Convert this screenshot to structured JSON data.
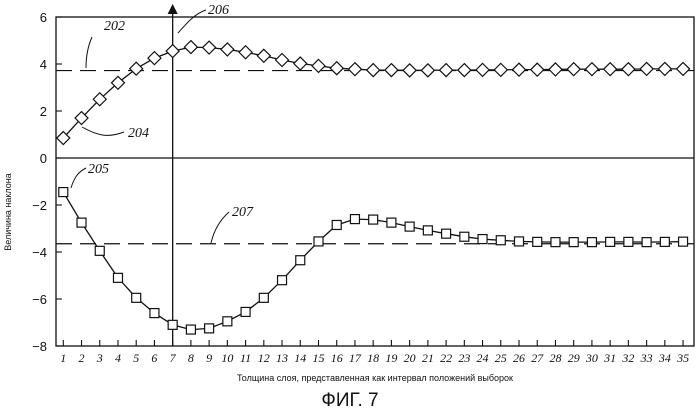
{
  "chart_data": {
    "type": "line",
    "title": "",
    "xlabel": "Толщина слоя, представленная как интервал положений выборок",
    "ylabel": "Величина наклона",
    "caption": "ФИГ. 7",
    "x": [
      1,
      2,
      3,
      4,
      5,
      6,
      7,
      8,
      9,
      10,
      11,
      12,
      13,
      14,
      15,
      16,
      17,
      18,
      19,
      20,
      21,
      22,
      23,
      24,
      25,
      26,
      27,
      28,
      29,
      30,
      31,
      32,
      33,
      34,
      35
    ],
    "xlim": [
      0.6,
      35.6
    ],
    "ylim": [
      -8,
      6
    ],
    "yticks": [
      -8,
      -6,
      -4,
      -2,
      0,
      2,
      4,
      6
    ],
    "series": [
      {
        "name": "",
        "marker": "diamond",
        "values": [
          0.85,
          1.7,
          2.5,
          3.2,
          3.8,
          4.25,
          4.55,
          4.72,
          4.7,
          4.62,
          4.5,
          4.35,
          4.17,
          4.02,
          3.92,
          3.82,
          3.78,
          3.74,
          3.74,
          3.73,
          3.73,
          3.74,
          3.74,
          3.75,
          3.75,
          3.76,
          3.76,
          3.77,
          3.78,
          3.78,
          3.78,
          3.78,
          3.79,
          3.79,
          3.79
        ]
      },
      {
        "name": "",
        "marker": "square",
        "values": [
          -1.45,
          -2.75,
          -3.95,
          -5.1,
          -5.95,
          -6.6,
          -7.1,
          -7.3,
          -7.25,
          -6.95,
          -6.55,
          -5.95,
          -5.2,
          -4.35,
          -3.55,
          -2.85,
          -2.6,
          -2.62,
          -2.75,
          -2.92,
          -3.08,
          -3.22,
          -3.35,
          -3.45,
          -3.5,
          -3.55,
          -3.57,
          -3.58,
          -3.58,
          -3.58,
          -3.57,
          -3.57,
          -3.58,
          -3.57,
          -3.56
        ]
      }
    ],
    "reference_lines": [
      {
        "id": "202",
        "type": "horizontal",
        "y": 3.72,
        "style": "dashed"
      },
      {
        "id": "207",
        "type": "horizontal",
        "y": -3.65,
        "style": "dashed"
      },
      {
        "id": "206",
        "type": "vertical",
        "x": 7,
        "style": "solid-arrow"
      }
    ],
    "annotations": [
      {
        "text": "202"
      },
      {
        "text": "204"
      },
      {
        "text": "205"
      },
      {
        "text": "206"
      },
      {
        "text": "207"
      }
    ],
    "grid": false
  }
}
